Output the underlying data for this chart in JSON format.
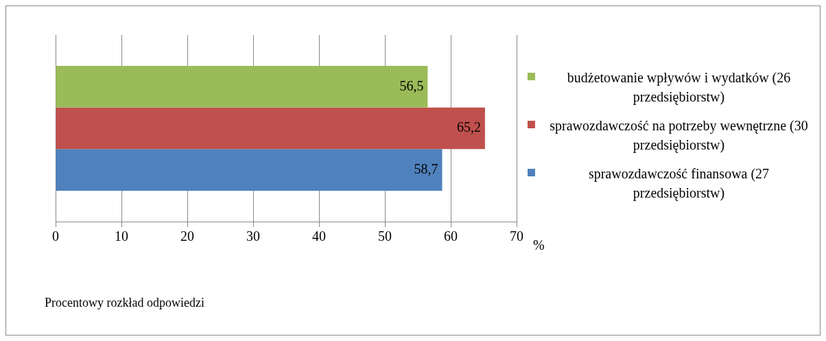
{
  "chart_data": {
    "type": "bar",
    "orientation": "horizontal",
    "categories": [
      null
    ],
    "xlabel": "%",
    "annotations": [
      "Procentowy rozkład odpowiedzi"
    ],
    "xlim": [
      0,
      70
    ],
    "xticks": [
      0,
      10,
      20,
      30,
      40,
      50,
      60,
      70
    ],
    "grid": "x",
    "legend": "right",
    "series": [
      {
        "name": "budżetowanie wpływów i wydatków (26 przedsiębiorstw)",
        "color": "#9bbb59",
        "values": [
          56.5
        ],
        "value_labels": [
          "56,5"
        ]
      },
      {
        "name": "sprawozdawczość na potrzeby wewnętrzne (30 przedsiębiorstw)",
        "color": "#c0504d",
        "values": [
          65.2
        ],
        "value_labels": [
          "65,2"
        ]
      },
      {
        "name": "sprawozdawczość finansowa (27 przedsiębiorstw)",
        "color": "#4f81bd",
        "values": [
          58.7
        ],
        "value_labels": [
          "58,7"
        ]
      }
    ]
  }
}
